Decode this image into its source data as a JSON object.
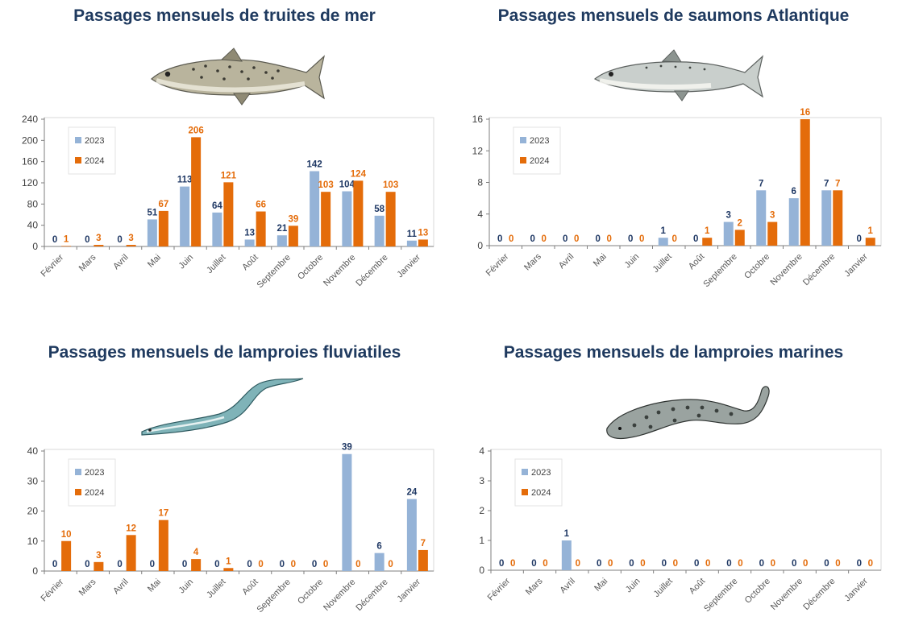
{
  "colors": {
    "s2023": "#95b3d7",
    "s2024": "#e46c0a",
    "label2023": "#1f3864",
    "label2024": "#e46c0a",
    "title": "#1f3a5f",
    "axis": "#7f7f7f",
    "grid": "#d9d9d9"
  },
  "chart_data": [
    {
      "type": "bar",
      "title": "Passages mensuels de truites de mer",
      "illustration": "sea-trout",
      "categories": [
        "Février",
        "Mars",
        "Avril",
        "Mai",
        "Juin",
        "Juillet",
        "Août",
        "Septembre",
        "Octobre",
        "Novembre",
        "Décembre",
        "Janvier"
      ],
      "series": [
        {
          "name": "2023",
          "values": [
            0,
            0,
            0,
            51,
            113,
            64,
            13,
            21,
            142,
            104,
            58,
            11
          ]
        },
        {
          "name": "2024",
          "values": [
            1,
            3,
            3,
            67,
            206,
            121,
            66,
            39,
            103,
            124,
            103,
            13
          ]
        }
      ],
      "ylim": [
        0,
        240
      ],
      "yticks": [
        0,
        40,
        80,
        120,
        160,
        200,
        240
      ],
      "grid": false,
      "legend_position": "top-left"
    },
    {
      "type": "bar",
      "title": "Passages mensuels de saumons Atlantique",
      "illustration": "atlantic-salmon",
      "categories": [
        "Février",
        "Mars",
        "Avril",
        "Mai",
        "Juin",
        "Juillet",
        "Août",
        "Septembre",
        "Octobre",
        "Novembre",
        "Décembre",
        "Janvier"
      ],
      "series": [
        {
          "name": "2023",
          "values": [
            0,
            0,
            0,
            0,
            0,
            1,
            0,
            3,
            7,
            6,
            7,
            0
          ]
        },
        {
          "name": "2024",
          "values": [
            0,
            0,
            0,
            0,
            0,
            0,
            1,
            2,
            3,
            16,
            7,
            1
          ]
        }
      ],
      "ylim": [
        0,
        16
      ],
      "yticks": [
        0,
        4,
        8,
        12,
        16
      ],
      "grid": false,
      "legend_position": "top-left"
    },
    {
      "type": "bar",
      "title": "Passages mensuels de lamproies fluviatiles",
      "illustration": "river-lamprey",
      "categories": [
        "Février",
        "Mars",
        "Avril",
        "Mai",
        "Juin",
        "Juillet",
        "Août",
        "Septembre",
        "Octobre",
        "Novembre",
        "Décembre",
        "Janvier"
      ],
      "series": [
        {
          "name": "2023",
          "values": [
            0,
            0,
            0,
            0,
            0,
            0,
            0,
            0,
            0,
            39,
            6,
            24
          ]
        },
        {
          "name": "2024",
          "values": [
            10,
            3,
            12,
            17,
            4,
            1,
            0,
            0,
            0,
            0,
            0,
            7
          ]
        }
      ],
      "ylim": [
        0,
        40
      ],
      "yticks": [
        0,
        10,
        20,
        30,
        40
      ],
      "grid": false,
      "legend_position": "top-left"
    },
    {
      "type": "bar",
      "title": "Passages mensuels de lamproies marines",
      "illustration": "sea-lamprey",
      "categories": [
        "Février",
        "Mars",
        "Avril",
        "Mai",
        "Juin",
        "Juillet",
        "Août",
        "Septembre",
        "Octobre",
        "Novembre",
        "Décembre",
        "Janvier"
      ],
      "series": [
        {
          "name": "2023",
          "values": [
            0,
            0,
            1,
            0,
            0,
            0,
            0,
            0,
            0,
            0,
            0,
            0
          ]
        },
        {
          "name": "2024",
          "values": [
            0,
            0,
            0,
            0,
            0,
            0,
            0,
            0,
            0,
            0,
            0,
            0
          ]
        }
      ],
      "ylim": [
        0,
        4
      ],
      "yticks": [
        0,
        1,
        2,
        3,
        4
      ],
      "grid": false,
      "legend_position": "top-left"
    }
  ]
}
